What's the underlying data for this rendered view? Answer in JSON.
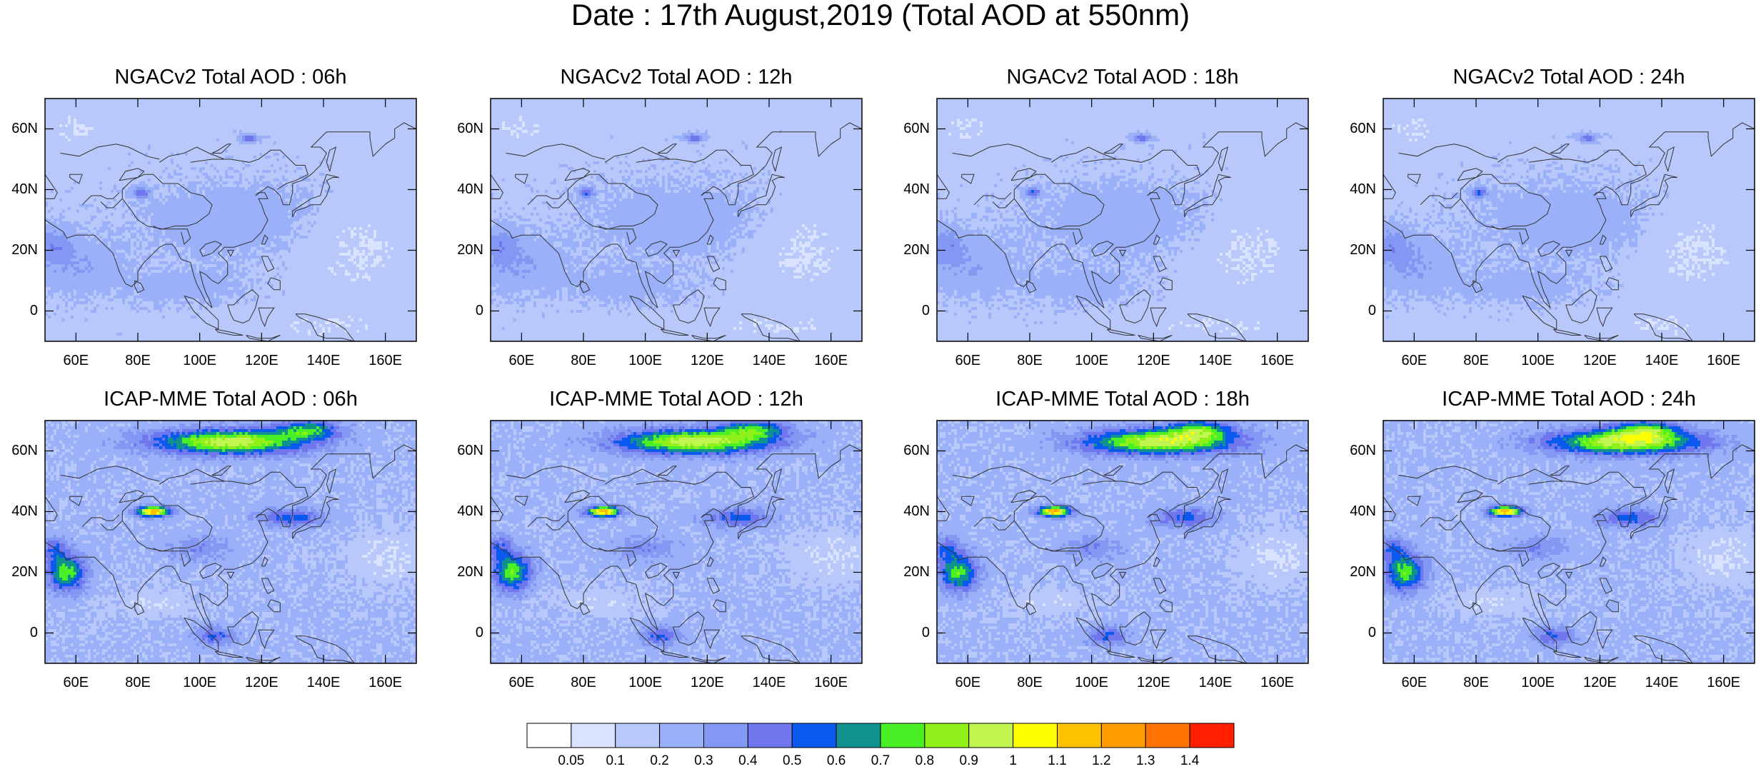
{
  "title": "Date : 17th August,2019 (Total AOD at 550nm)",
  "panels": [
    {
      "title": "NGACv2 Total AOD : 06h",
      "model": "NGACv2",
      "hour": "06h"
    },
    {
      "title": "NGACv2 Total AOD : 12h",
      "model": "NGACv2",
      "hour": "12h"
    },
    {
      "title": "NGACv2 Total AOD : 18h",
      "model": "NGACv2",
      "hour": "18h"
    },
    {
      "title": "NGACv2 Total AOD : 24h",
      "model": "NGACv2",
      "hour": "24h"
    },
    {
      "title": "ICAP-MME Total AOD : 06h",
      "model": "ICAP-MME",
      "hour": "06h"
    },
    {
      "title": "ICAP-MME Total AOD : 12h",
      "model": "ICAP-MME",
      "hour": "12h"
    },
    {
      "title": "ICAP-MME Total AOD : 18h",
      "model": "ICAP-MME",
      "hour": "18h"
    },
    {
      "title": "ICAP-MME Total AOD : 24h",
      "model": "ICAP-MME",
      "hour": "24h"
    }
  ],
  "map": {
    "lon_range": [
      50,
      170
    ],
    "lat_range": [
      -10,
      70
    ],
    "lat_ticks": [
      "60N",
      "40N",
      "20N",
      "0"
    ],
    "lat_values": [
      60,
      40,
      20,
      0
    ],
    "lon_ticks": [
      "60E",
      "80E",
      "100E",
      "120E",
      "140E",
      "160E"
    ],
    "lon_values": [
      60,
      80,
      100,
      120,
      140,
      160
    ]
  },
  "colorbar": {
    "labels": [
      "0.05",
      "0.1",
      "0.2",
      "0.3",
      "0.4",
      "0.5",
      "0.6",
      "0.7",
      "0.8",
      "0.9",
      "1",
      "1.1",
      "1.2",
      "1.3",
      "1.4"
    ],
    "colors": [
      "#ffffff",
      "#d9e3ff",
      "#b8c8fb",
      "#9ab0f8",
      "#8398f3",
      "#6f76ee",
      "#0a5af0",
      "#10918f",
      "#49f026",
      "#90f01a",
      "#c2f550",
      "#ffff00",
      "#ffc200",
      "#ff9c00",
      "#ff7400",
      "#ff1e00"
    ]
  }
}
